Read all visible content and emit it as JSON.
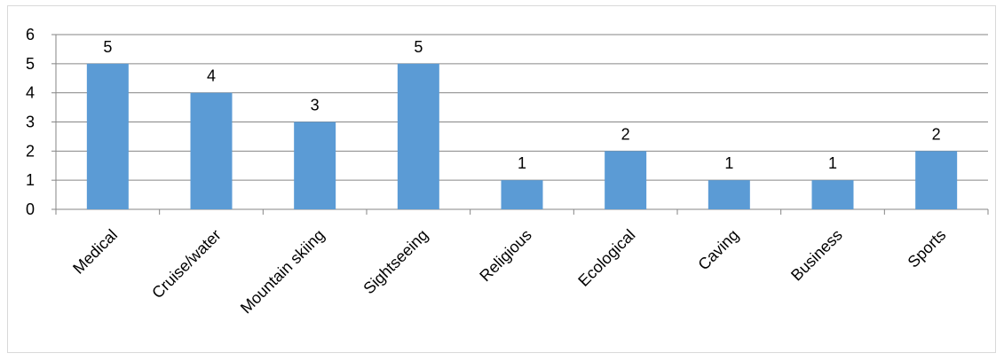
{
  "chart_data": {
    "type": "bar",
    "title": "",
    "xlabel": "",
    "ylabel": "",
    "categories": [
      "Medical",
      "Cruise/water",
      "Mountain skiing",
      "Sightseeing",
      "Religious",
      "Ecological",
      "Caving",
      "Business",
      "Sports"
    ],
    "values": [
      5,
      4,
      3,
      5,
      1,
      2,
      1,
      1,
      2
    ],
    "ylim": [
      0,
      6
    ],
    "yticks": [
      "0",
      "1",
      "2",
      "3",
      "4",
      "5",
      "6"
    ],
    "data_labels": [
      "5",
      "4",
      "3",
      "5",
      "1",
      "2",
      "1",
      "1",
      "2"
    ],
    "grid": true,
    "legend": "none",
    "bar_color": "#5b9bd5",
    "grid_color": "#868686"
  }
}
